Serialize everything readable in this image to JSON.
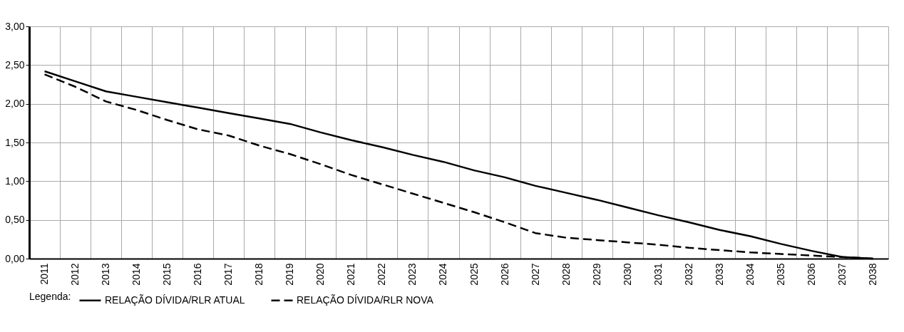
{
  "chart_data": {
    "type": "line",
    "categories": [
      "2011",
      "2012",
      "2013",
      "2014",
      "2015",
      "2016",
      "2017",
      "2018",
      "2019",
      "2020",
      "2021",
      "2022",
      "2023",
      "2024",
      "2025",
      "2026",
      "2027",
      "2028",
      "2029",
      "2030",
      "2031",
      "2032",
      "2033",
      "2034",
      "2035",
      "2036",
      "2037",
      "2038"
    ],
    "series": [
      {
        "name": "RELAÇÃO DÍVIDA/RLR ATUAL",
        "color": "#000000",
        "line_style": "solid",
        "values": [
          2.42,
          2.29,
          2.16,
          2.09,
          2.02,
          1.95,
          1.88,
          1.81,
          1.74,
          1.63,
          1.53,
          1.44,
          1.34,
          1.25,
          1.14,
          1.05,
          0.94,
          0.85,
          0.76,
          0.66,
          0.56,
          0.47,
          0.37,
          0.29,
          0.19,
          0.1,
          0.02,
          0.0
        ]
      },
      {
        "name": "RELAÇÃO DÍVIDA/RLR NOVA",
        "color": "#000000",
        "line_style": "dashed",
        "values": [
          2.38,
          2.22,
          2.03,
          1.92,
          1.79,
          1.67,
          1.59,
          1.46,
          1.35,
          1.22,
          1.08,
          0.96,
          0.84,
          0.72,
          0.6,
          0.47,
          0.33,
          0.27,
          0.24,
          0.21,
          0.18,
          0.14,
          0.11,
          0.08,
          0.06,
          0.04,
          0.02,
          0.0
        ]
      }
    ],
    "ylim": [
      0,
      3
    ],
    "yticks": [
      {
        "value": 0,
        "label": "0,00"
      },
      {
        "value": 0.5,
        "label": "0,50"
      },
      {
        "value": 1,
        "label": "1,00"
      },
      {
        "value": 1.5,
        "label": "1,50"
      },
      {
        "value": 2,
        "label": "2,00"
      },
      {
        "value": 2.5,
        "label": "2,50"
      },
      {
        "value": 3,
        "label": "3,00"
      }
    ],
    "grid": true,
    "legend": "bottom",
    "legend_title": "Legenda:",
    "marker": "none"
  }
}
